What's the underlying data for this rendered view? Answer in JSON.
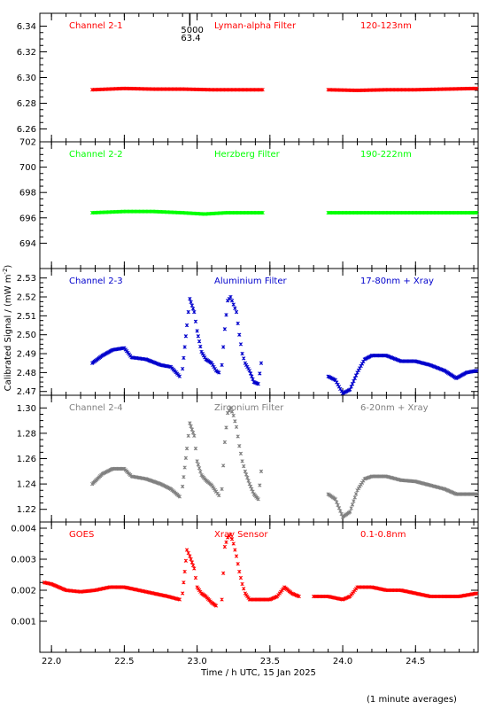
{
  "chart_data": [
    {
      "type": "scatter",
      "panel": "Channel 2-1",
      "labels": [
        "Channel 2-1",
        "Lyman-alpha Filter",
        "120-123nm"
      ],
      "color": "#ff0000",
      "ylim": [
        6.25,
        6.35
      ],
      "yticks": [
        "6.26",
        "6.28",
        "6.30",
        "6.32",
        "6.34"
      ],
      "annotation": [
        "5000",
        "63.4"
      ],
      "segments": [
        {
          "x": [
            22.28,
            22.5,
            22.7,
            22.9,
            23.1,
            23.3,
            23.45
          ],
          "y": [
            6.2905,
            6.2915,
            6.291,
            6.291,
            6.2905,
            6.2905,
            6.2905
          ]
        },
        {
          "x": [
            23.9,
            24.1,
            24.3,
            24.5,
            24.7,
            24.92
          ],
          "y": [
            6.2905,
            6.29,
            6.2905,
            6.2905,
            6.291,
            6.2915
          ]
        }
      ]
    },
    {
      "type": "scatter",
      "panel": "Channel 2-2",
      "labels": [
        "Channel 2-2",
        "Herzberg Filter",
        "190-222nm"
      ],
      "color": "#00ff00",
      "ylim": [
        692,
        702
      ],
      "yticks": [
        "694",
        "696",
        "698",
        "700",
        "702"
      ],
      "segments": [
        {
          "x": [
            22.28,
            22.5,
            22.7,
            22.9,
            23.05,
            23.2,
            23.45
          ],
          "y": [
            696.4,
            696.5,
            696.5,
            696.4,
            696.3,
            696.4,
            696.4
          ]
        },
        {
          "x": [
            23.9,
            24.1,
            24.3,
            24.5,
            24.7,
            24.92
          ],
          "y": [
            696.4,
            696.4,
            696.4,
            696.4,
            696.4,
            696.4
          ]
        }
      ]
    },
    {
      "type": "scatter",
      "panel": "Channel 2-3",
      "labels": [
        "Channel 2-3",
        "Aluminium Filter",
        "17-80nm + Xray"
      ],
      "color": "#0000cc",
      "ylim": [
        2.468,
        2.535
      ],
      "yticks": [
        "2.47",
        "2.48",
        "2.49",
        "2.50",
        "2.51",
        "2.52",
        "2.53"
      ],
      "segments": [
        {
          "x": [
            22.28,
            22.35,
            22.42,
            22.5,
            22.55,
            22.65,
            22.75,
            22.82,
            22.88
          ],
          "y": [
            2.485,
            2.489,
            2.492,
            2.493,
            2.488,
            2.487,
            2.484,
            2.483,
            2.478
          ]
        },
        {
          "x": [
            22.9,
            22.93,
            22.95,
            22.98,
            23.0,
            23.03,
            23.06,
            23.1,
            23.13,
            23.15
          ],
          "y": [
            2.482,
            2.505,
            2.519,
            2.512,
            2.502,
            2.491,
            2.487,
            2.485,
            2.481,
            2.48
          ]
        },
        {
          "x": [
            23.17,
            23.19,
            23.21,
            23.23,
            23.25,
            23.27,
            23.29,
            23.31,
            23.33,
            23.36,
            23.39,
            23.42,
            23.44
          ],
          "y": [
            2.484,
            2.503,
            2.518,
            2.52,
            2.516,
            2.512,
            2.5,
            2.49,
            2.485,
            2.481,
            2.475,
            2.474,
            2.485
          ]
        },
        {
          "x": [
            23.9,
            23.95,
            24.0,
            24.05,
            24.1,
            24.15,
            24.2,
            24.3,
            24.4,
            24.5,
            24.6,
            24.7,
            24.78,
            24.85,
            24.92
          ],
          "y": [
            2.478,
            2.476,
            2.469,
            2.471,
            2.48,
            2.487,
            2.489,
            2.489,
            2.486,
            2.486,
            2.484,
            2.481,
            2.477,
            2.48,
            2.481
          ]
        }
      ]
    },
    {
      "type": "scatter",
      "panel": "Channel 2-4",
      "labels": [
        "Channel 2-4",
        "Zirconium Filter",
        "6-20nm + Xray"
      ],
      "color": "#808080",
      "ylim": [
        1.21,
        1.31
      ],
      "yticks": [
        "1.22",
        "1.24",
        "1.26",
        "1.28",
        "1.30"
      ],
      "segments": [
        {
          "x": [
            22.28,
            22.35,
            22.42,
            22.5,
            22.55,
            22.65,
            22.75,
            22.82,
            22.88
          ],
          "y": [
            1.24,
            1.248,
            1.252,
            1.252,
            1.246,
            1.244,
            1.24,
            1.236,
            1.23
          ]
        },
        {
          "x": [
            22.9,
            22.93,
            22.95,
            22.98,
            23.0,
            23.03,
            23.06,
            23.1,
            23.13,
            23.15
          ],
          "y": [
            1.238,
            1.268,
            1.288,
            1.278,
            1.258,
            1.247,
            1.243,
            1.239,
            1.234,
            1.231
          ]
        },
        {
          "x": [
            23.17,
            23.19,
            23.21,
            23.23,
            23.25,
            23.27,
            23.29,
            23.31,
            23.33,
            23.36,
            23.39,
            23.42,
            23.44
          ],
          "y": [
            1.236,
            1.273,
            1.296,
            1.3,
            1.294,
            1.285,
            1.27,
            1.258,
            1.25,
            1.24,
            1.232,
            1.228,
            1.25
          ]
        },
        {
          "x": [
            23.9,
            23.95,
            24.0,
            24.05,
            24.1,
            24.15,
            24.2,
            24.3,
            24.4,
            24.5,
            24.6,
            24.7,
            24.78,
            24.85,
            24.92
          ],
          "y": [
            1.232,
            1.228,
            1.214,
            1.218,
            1.235,
            1.244,
            1.246,
            1.246,
            1.243,
            1.242,
            1.239,
            1.236,
            1.232,
            1.232,
            1.232
          ]
        }
      ]
    },
    {
      "type": "scatter",
      "panel": "GOES",
      "labels": [
        "GOES",
        "Xray Sensor",
        "0.1-0.8nm"
      ],
      "color": "#ff0000",
      "ylim": [
        0.0,
        0.0042
      ],
      "yticks": [
        "0.001",
        "0.002",
        "0.003",
        "0.004"
      ],
      "segments": [
        {
          "x": [
            21.95,
            22.0,
            22.1,
            22.2,
            22.3,
            22.4,
            22.5,
            22.6,
            22.7,
            22.8,
            22.88
          ],
          "y": [
            0.00225,
            0.0022,
            0.002,
            0.00195,
            0.002,
            0.0021,
            0.0021,
            0.002,
            0.0019,
            0.0018,
            0.0017
          ]
        },
        {
          "x": [
            22.9,
            22.93,
            22.95,
            22.98,
            23.0,
            23.03,
            23.06,
            23.1,
            23.13
          ],
          "y": [
            0.0019,
            0.0033,
            0.0031,
            0.0027,
            0.0021,
            0.0019,
            0.0018,
            0.0016,
            0.0015
          ]
        },
        {
          "x": [
            23.17,
            23.19,
            23.21,
            23.23,
            23.25,
            23.27,
            23.29,
            23.31,
            23.33,
            23.36,
            23.4,
            23.5,
            23.55,
            23.6,
            23.65,
            23.7
          ],
          "y": [
            0.0017,
            0.0034,
            0.0037,
            0.0038,
            0.0035,
            0.0031,
            0.0026,
            0.0022,
            0.0019,
            0.0017,
            0.0017,
            0.0017,
            0.0018,
            0.0021,
            0.0019,
            0.0018
          ]
        },
        {
          "x": [
            23.8,
            23.9,
            24.0,
            24.05,
            24.1,
            24.15,
            24.2,
            24.3,
            24.4,
            24.5,
            24.6,
            24.7,
            24.8,
            24.92
          ],
          "y": [
            0.0018,
            0.0018,
            0.0017,
            0.0018,
            0.0021,
            0.0021,
            0.0021,
            0.002,
            0.002,
            0.0019,
            0.0018,
            0.0018,
            0.0018,
            0.0019
          ]
        }
      ]
    }
  ],
  "x_axis": {
    "xlim": [
      21.92,
      24.93
    ],
    "xticks": [
      "22.0",
      "22.5",
      "23.0",
      "23.5",
      "24.0",
      "24.5"
    ],
    "xlabel": "Time / h UTC, 15 Jan 2025"
  },
  "y_axis_title": "Calibrated Signal / (mW m",
  "y_axis_title_exponent": "-2",
  "y_axis_title_close": ")",
  "footnote": "(1 minute averages)"
}
